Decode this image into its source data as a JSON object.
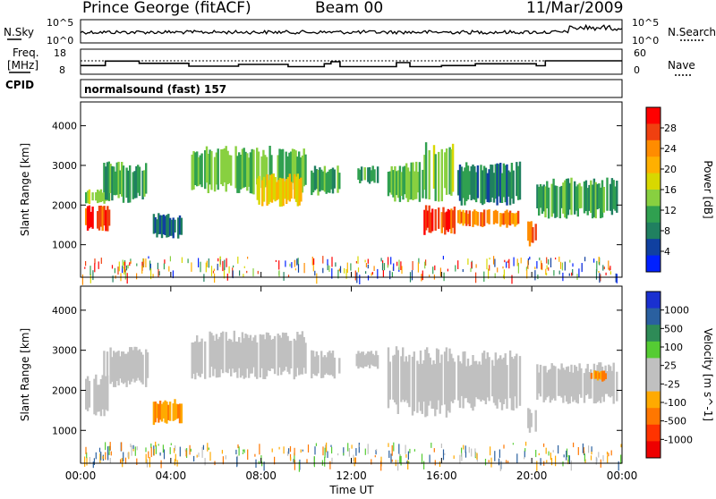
{
  "header": {
    "station": "Prince George (fitACF)",
    "beam": "Beam 00",
    "date": "11/Mar/2009"
  },
  "noise_panel": {
    "left_label": "N.Sky",
    "left_ticks": [
      "10^5",
      "10^0"
    ],
    "right_label": "N.Search",
    "right_ticks": [
      "10^5",
      "10^0"
    ]
  },
  "freq_panel": {
    "left_label_top": "Freq.",
    "left_label_bottom": "[MHz]",
    "left_ticks": [
      "18",
      "8"
    ],
    "right_label": "Nave",
    "right_ticks": [
      "60",
      "0"
    ],
    "cpid_label": "CPID",
    "cpid_text": "normalsound (fast) 157"
  },
  "chart_data": [
    {
      "type": "heatmap",
      "name": "power",
      "ylabel": "Slant Range [km]",
      "xlabel": "",
      "yticks": [
        "4000",
        "3000",
        "2000",
        "1000"
      ],
      "ylim": [
        180,
        4600
      ],
      "colorbar_label": "Power [dB]",
      "colorbar_ticks": [
        "28",
        "24",
        "20",
        "16",
        "12",
        "8",
        "4"
      ],
      "colorbar_colors": [
        "#ff0000",
        "#f04010",
        "#ff8c00",
        "#ffb000",
        "#d8d800",
        "#88d040",
        "#30a050",
        "#208060",
        "#1040a0",
        "#0020ff"
      ],
      "regions": [
        {
          "t0": 0.2,
          "t1": 1.3,
          "r0": 1300,
          "r1": 2000,
          "level": 26
        },
        {
          "t0": 0.2,
          "t1": 1.3,
          "r0": 2000,
          "r1": 2400,
          "level": 14
        },
        {
          "t0": 1.0,
          "t1": 3.0,
          "r0": 2000,
          "r1": 3100,
          "level": 10
        },
        {
          "t0": 3.2,
          "t1": 4.5,
          "r0": 1100,
          "r1": 1800,
          "level": 6
        },
        {
          "t0": 4.9,
          "t1": 10.0,
          "r0": 2200,
          "r1": 3500,
          "level": 12
        },
        {
          "t0": 7.8,
          "t1": 9.8,
          "r0": 1900,
          "r1": 2800,
          "level": 18
        },
        {
          "t0": 10.2,
          "t1": 11.5,
          "r0": 2200,
          "r1": 3000,
          "level": 10
        },
        {
          "t0": 12.2,
          "t1": 13.2,
          "r0": 2500,
          "r1": 3000,
          "level": 10
        },
        {
          "t0": 13.6,
          "t1": 15.2,
          "r0": 2000,
          "r1": 3100,
          "level": 12
        },
        {
          "t0": 15.2,
          "t1": 16.6,
          "r0": 1200,
          "r1": 2000,
          "level": 26
        },
        {
          "t0": 15.2,
          "t1": 16.6,
          "r0": 2000,
          "r1": 3600,
          "level": 14
        },
        {
          "t0": 16.7,
          "t1": 19.5,
          "r0": 1400,
          "r1": 1900,
          "level": 22
        },
        {
          "t0": 16.7,
          "t1": 19.5,
          "r0": 1900,
          "r1": 3100,
          "level": 8
        },
        {
          "t0": 19.8,
          "t1": 20.2,
          "r0": 900,
          "r1": 1600,
          "level": 24
        },
        {
          "t0": 20.2,
          "t1": 23.8,
          "r0": 1600,
          "r1": 2700,
          "level": 10
        }
      ]
    },
    {
      "type": "heatmap",
      "name": "velocity",
      "ylabel": "Slant Range [km]",
      "xlabel": "Time UT",
      "xticks": [
        "00:00",
        "04:00",
        "08:00",
        "12:00",
        "16:00",
        "20:00",
        "00:00"
      ],
      "yticks": [
        "4000",
        "3000",
        "2000",
        "1000"
      ],
      "ylim": [
        180,
        4600
      ],
      "colorbar_label": "Velocity [m s^-1]",
      "colorbar_ticks": [
        "1000",
        "500",
        "100",
        "25",
        "-25",
        "-100",
        "-500",
        "-1000"
      ],
      "colorbar_colors": [
        "#1a30d0",
        "#2a60a0",
        "#2e8b57",
        "#55cc33",
        "#c0c0c0",
        "#c0c0c0",
        "#ffaa00",
        "#ff7700",
        "#ff3300",
        "#ee0000"
      ],
      "regions": [
        {
          "t0": 0.2,
          "t1": 1.3,
          "r0": 1300,
          "r1": 2400,
          "level": 0
        },
        {
          "t0": 1.0,
          "t1": 3.0,
          "r0": 2000,
          "r1": 3100,
          "level": 0
        },
        {
          "t0": 3.2,
          "t1": 4.5,
          "r0": 1100,
          "r1": 1800,
          "level": -200
        },
        {
          "t0": 4.9,
          "t1": 10.0,
          "r0": 2200,
          "r1": 3500,
          "level": 0
        },
        {
          "t0": 10.2,
          "t1": 11.5,
          "r0": 2200,
          "r1": 3000,
          "level": 0
        },
        {
          "t0": 12.2,
          "t1": 13.2,
          "r0": 2500,
          "r1": 3000,
          "level": 0
        },
        {
          "t0": 13.6,
          "t1": 16.6,
          "r0": 1200,
          "r1": 3100,
          "level": 0
        },
        {
          "t0": 16.7,
          "t1": 19.5,
          "r0": 1400,
          "r1": 3000,
          "level": 0
        },
        {
          "t0": 19.8,
          "t1": 20.2,
          "r0": 900,
          "r1": 1600,
          "level": 0
        },
        {
          "t0": 20.2,
          "t1": 23.8,
          "r0": 1600,
          "r1": 2700,
          "level": 0
        },
        {
          "t0": 22.6,
          "t1": 23.3,
          "r0": 2200,
          "r1": 2500,
          "level": -200
        }
      ]
    }
  ]
}
